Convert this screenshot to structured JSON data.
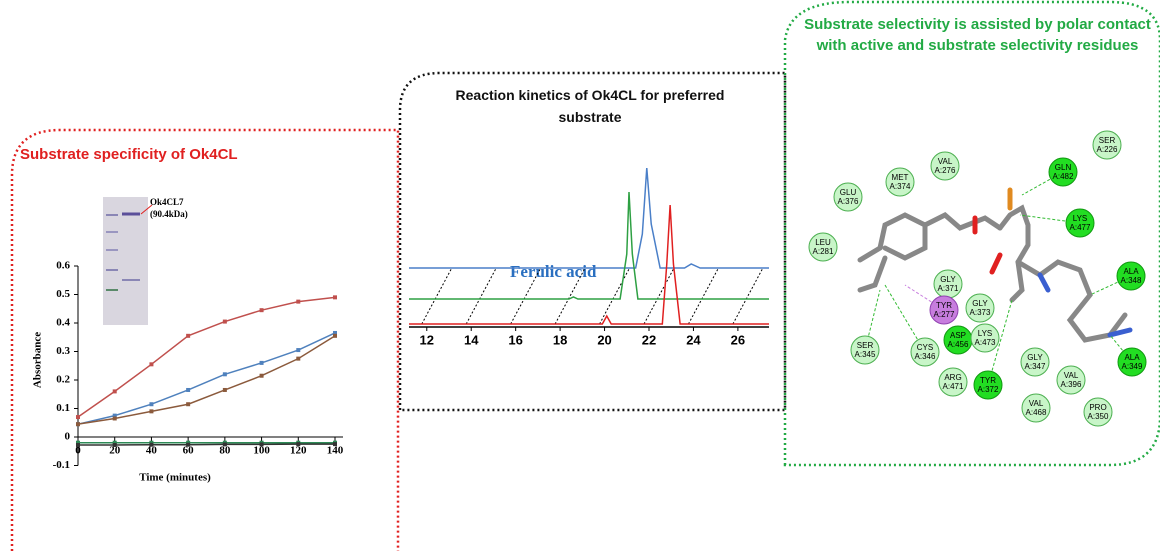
{
  "chart_data": [
    {
      "type": "line",
      "title": "Substrate specificity of Ok4CL",
      "xlabel": "Time (minutes)",
      "ylabel": "Absorbance",
      "gel_label": [
        "Ok4CL7",
        "(90.4kDa)"
      ],
      "x": [
        0,
        20,
        40,
        60,
        80,
        100,
        120,
        140
      ],
      "xlim": [
        0,
        140
      ],
      "xticks": [
        0,
        20,
        40,
        60,
        80,
        100,
        120,
        140
      ],
      "ylim": [
        -0.1,
        0.6
      ],
      "yticks": [
        -0.1,
        0,
        0.1,
        0.2,
        0.3,
        0.4,
        0.5,
        0.6
      ],
      "series": [
        {
          "color": "#c0504d",
          "values": [
            0.07,
            0.16,
            0.255,
            0.355,
            0.405,
            0.445,
            0.475,
            0.49
          ]
        },
        {
          "color": "#4f81bd",
          "values": [
            0.045,
            0.075,
            0.115,
            0.165,
            0.22,
            0.26,
            0.305,
            0.365
          ]
        },
        {
          "color": "#8b5a3c",
          "values": [
            0.045,
            0.065,
            0.09,
            0.115,
            0.165,
            0.215,
            0.275,
            0.355
          ]
        },
        {
          "color": "#2e8b57",
          "values": [
            -0.02,
            -0.02,
            -0.02,
            -0.02,
            -0.02,
            -0.02,
            -0.02,
            -0.02
          ]
        },
        {
          "color": "#333333",
          "values": [
            -0.028,
            -0.028,
            -0.027,
            -0.027,
            -0.026,
            -0.026,
            -0.025,
            -0.025
          ]
        }
      ]
    },
    {
      "type": "trace",
      "title": "Reaction kinetics of Ok4CL for preferred substrate",
      "annotation": "Ferulic acid",
      "xlim": [
        11.2,
        27.4
      ],
      "xticks": [
        12,
        14,
        16,
        18,
        20,
        22,
        24,
        26
      ],
      "ylim": [
        0,
        160
      ],
      "series": [
        {
          "color": "#4a7fc8",
          "x": [
            11.2,
            21.4,
            21.7,
            21.9,
            22.1,
            22.5,
            23.6,
            23.9,
            24.3,
            27.4
          ],
          "values": [
            56,
            56,
            90,
            156,
            100,
            56,
            56,
            60,
            56,
            56
          ]
        },
        {
          "color": "#2ea043",
          "x": [
            11.2,
            18.4,
            18.6,
            18.8,
            20.7,
            21.0,
            21.1,
            21.25,
            21.5,
            27.4
          ],
          "values": [
            25,
            25,
            27,
            25,
            25,
            70,
            132,
            70,
            25,
            25
          ]
        },
        {
          "color": "#e02020",
          "x": [
            11.2,
            19.9,
            20.1,
            20.3,
            22.6,
            22.8,
            22.95,
            23.1,
            23.4,
            27.4
          ],
          "values": [
            0,
            0,
            8,
            0,
            0,
            60,
            119,
            60,
            0,
            0
          ]
        }
      ]
    }
  ],
  "diagram": {
    "title": "Substrate selectivity is assisted by polar contact with active and substrate selectivity residues",
    "residues": [
      {
        "name": "SER",
        "chain": "A:226"
      },
      {
        "name": "GLN",
        "chain": "A:482"
      },
      {
        "name": "VAL",
        "chain": "A:276"
      },
      {
        "name": "MET",
        "chain": "A:374"
      },
      {
        "name": "GLU",
        "chain": "A:376"
      },
      {
        "name": "LYS",
        "chain": "A:477"
      },
      {
        "name": "LEU",
        "chain": "A:281"
      },
      {
        "name": "ALA",
        "chain": "A:348"
      },
      {
        "name": "GLY",
        "chain": "A:371"
      },
      {
        "name": "TYR",
        "chain": "A:277"
      },
      {
        "name": "GLY",
        "chain": "A:373"
      },
      {
        "name": "ASP",
        "chain": "A:456"
      },
      {
        "name": "LYS",
        "chain": "A:473"
      },
      {
        "name": "SER",
        "chain": "A:345"
      },
      {
        "name": "CYS",
        "chain": "A:346"
      },
      {
        "name": "ALA",
        "chain": "A:349"
      },
      {
        "name": "GLY",
        "chain": "A:347"
      },
      {
        "name": "VAL",
        "chain": "A:396"
      },
      {
        "name": "ARG",
        "chain": "A:471"
      },
      {
        "name": "TYR",
        "chain": "A:372"
      },
      {
        "name": "VAL",
        "chain": "A:468"
      },
      {
        "name": "PRO",
        "chain": "A:350"
      }
    ]
  }
}
